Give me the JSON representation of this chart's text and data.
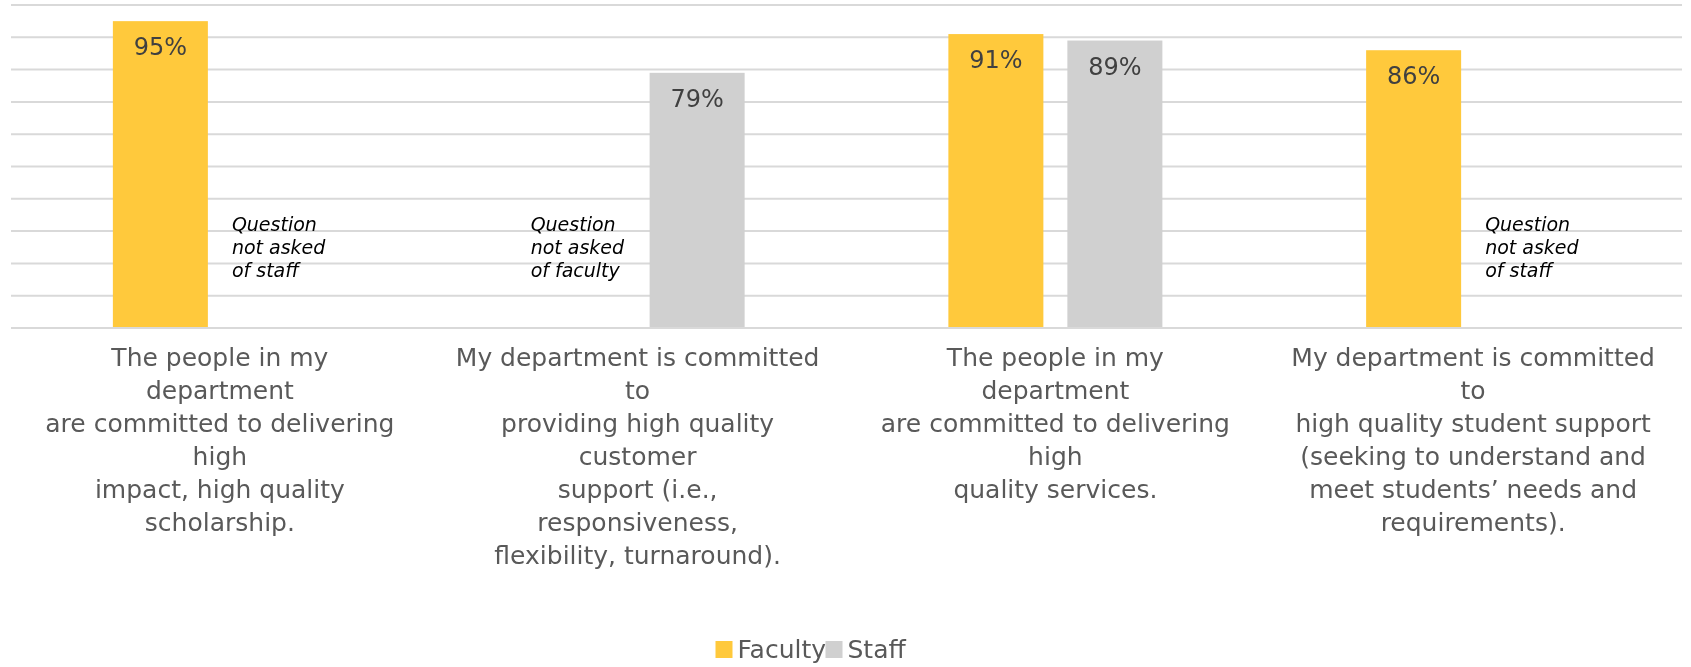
{
  "chart_data": {
    "type": "bar",
    "categories": [
      "The people in my\ndepartment\nare committed to delivering\nhigh\nimpact, high quality\nscholarship.",
      "My department is committed\nto\nproviding high quality\ncustomer\nsupport (i.e.,\nresponsiveness,\nflexibility, turnaround).",
      "The people in my\ndepartment\nare committed to delivering\nhigh\nquality services.",
      "My department is committed\nto\nhigh quality student support\n(seeking to understand and\nmeet students’ needs and\nrequirements)."
    ],
    "series": [
      {
        "name": "Faculty",
        "color": "#ffc93c",
        "values": [
          95,
          null,
          91,
          86
        ],
        "value_labels": [
          "95%",
          null,
          "91%",
          "86%"
        ]
      },
      {
        "name": "Staff",
        "color": "#d0d0d0",
        "values": [
          null,
          79,
          89,
          null
        ],
        "value_labels": [
          null,
          "79%",
          "89%",
          null
        ]
      }
    ],
    "annotations": [
      "Question\nnot asked\nof staff",
      "Question\nnot asked\nof faculty",
      "Question\nnot asked\nof staff"
    ],
    "ylim": [
      0,
      100
    ],
    "yticks": [
      {
        "value": 0,
        "label": null
      },
      {
        "value": 10,
        "label": null
      },
      {
        "value": 20,
        "label": null
      },
      {
        "value": 30,
        "label": null
      },
      {
        "value": 40,
        "label": null
      },
      {
        "value": 50,
        "label": null
      },
      {
        "value": 60,
        "label": null
      },
      {
        "value": 70,
        "label": null
      },
      {
        "value": 80,
        "label": null
      },
      {
        "value": 90,
        "label": null
      },
      {
        "value": 100,
        "label": null
      }
    ],
    "grid": "y",
    "legend": "bottom",
    "tick_labels": "x"
  }
}
